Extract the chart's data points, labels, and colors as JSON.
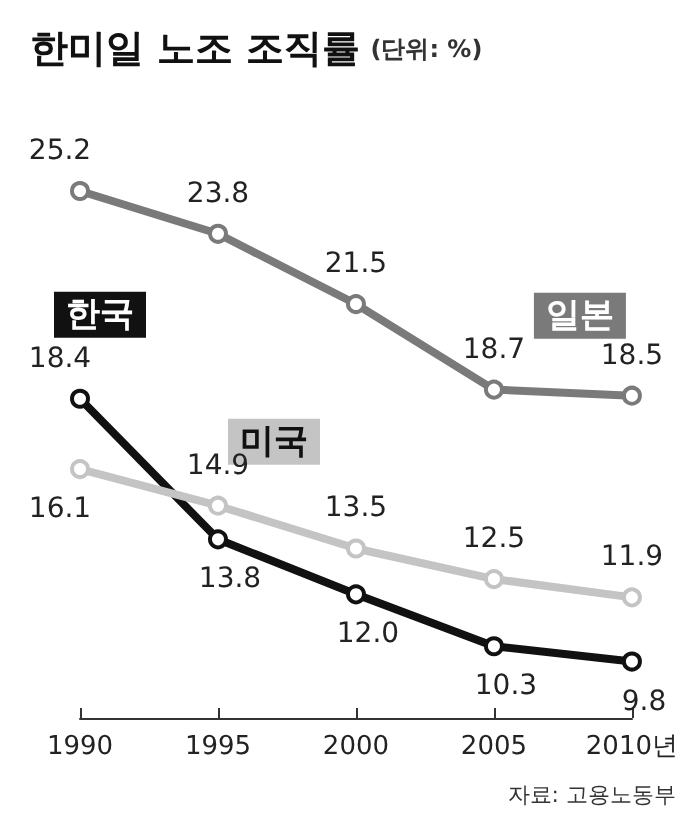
{
  "chart_data": {
    "type": "line",
    "title": "한미일 노조 조직률",
    "subtitle": "(단위: %)",
    "categories": [
      "1990",
      "1995",
      "2000",
      "2005",
      "2010년"
    ],
    "series": [
      {
        "name": "일본",
        "color": "#7a7a7a",
        "values": [
          25.2,
          23.8,
          21.5,
          18.7,
          18.5
        ],
        "value_labels": [
          "25.2",
          "23.8",
          "21.5",
          "18.7",
          "18.5"
        ]
      },
      {
        "name": "한국",
        "color": "#111111",
        "values": [
          18.4,
          13.8,
          12.0,
          10.3,
          9.8
        ],
        "value_labels": [
          "18.4",
          "13.8",
          "12.0",
          "10.3",
          "9.8"
        ]
      },
      {
        "name": "미국",
        "color": "#c4c4c4",
        "values": [
          16.1,
          14.9,
          13.5,
          12.5,
          11.9
        ],
        "value_labels": [
          "16.1",
          "14.9",
          "13.5",
          "12.5",
          "11.9"
        ]
      }
    ],
    "marker": "circle",
    "line_style": "solid",
    "grid": false,
    "legend": false,
    "annotations": [
      "자료: 고용노동부"
    ]
  }
}
